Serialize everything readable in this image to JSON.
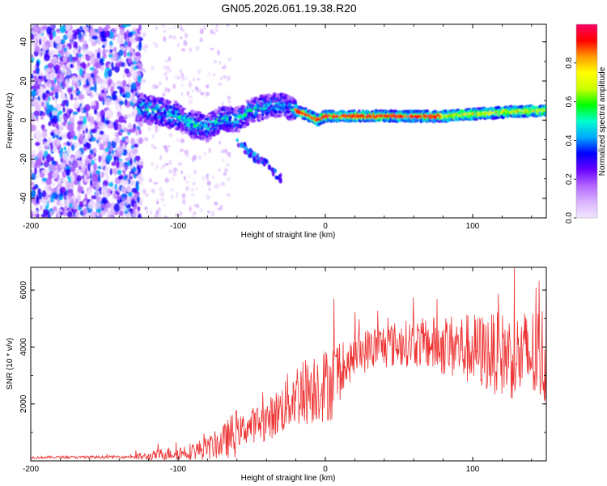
{
  "chart_data": [
    {
      "type": "heatmap",
      "title": "GN05.2026.061.19.38.R20",
      "xlabel": "Height of straight line (km)",
      "ylabel": "Frequency (Hz)",
      "xlim": [
        -200,
        150
      ],
      "ylim": [
        -50,
        49
      ],
      "xticks": [
        -200,
        -100,
        0,
        100
      ],
      "yticks": [
        -40,
        -20,
        0,
        20,
        40
      ],
      "colorbar": {
        "label": "Normalized spectral amplitude",
        "range": [
          0,
          1
        ],
        "ticks": [
          0.0,
          0.2,
          0.4,
          0.6,
          0.8
        ],
        "stops": [
          "#f2e6ff",
          "#d9b3ff",
          "#b366ff",
          "#6600ff",
          "#0000ff",
          "#00aaff",
          "#00ffcc",
          "#00ff00",
          "#ccff00",
          "#ffff00",
          "#ff9900",
          "#ff0000",
          "#ff0066"
        ]
      },
      "ridge": {
        "description_points_x": [
          -125,
          -110,
          -100,
          -90,
          -80,
          -70,
          -60,
          -50,
          -40,
          -30,
          -20,
          -10,
          -5,
          0,
          20,
          50,
          80,
          100,
          120,
          150
        ],
        "description_points_freq": [
          6,
          4,
          2,
          -2,
          -4,
          1,
          0,
          5,
          7,
          8,
          5,
          2,
          0,
          2,
          2,
          2,
          2,
          3,
          4,
          5
        ],
        "tail_x": [
          -60,
          -55,
          -50,
          -40,
          -30
        ],
        "tail_freq": [
          -10,
          -14,
          -18,
          -22,
          -30
        ]
      }
    },
    {
      "type": "line",
      "xlabel": "Height of straight line (km)",
      "ylabel": "SNR (10 * v/v)",
      "xlim": [
        -200,
        150
      ],
      "ylim": [
        0,
        6800
      ],
      "xticks": [
        -200,
        -100,
        0,
        100
      ],
      "yticks": [
        2000,
        4000,
        6000
      ],
      "color": "#ee3333",
      "series": [
        {
          "name": "SNR",
          "x": [
            -200,
            -180,
            -160,
            -140,
            -120,
            -110,
            -100,
            -90,
            -80,
            -70,
            -60,
            -50,
            -45,
            -40,
            -35,
            -30,
            -25,
            -20,
            -15,
            -10,
            -5,
            0,
            5,
            10,
            15,
            20,
            25,
            30,
            40,
            50,
            60,
            70,
            80,
            90,
            100,
            110,
            120,
            130,
            140,
            150
          ],
          "values": [
            120,
            130,
            130,
            140,
            150,
            250,
            280,
            350,
            450,
            650,
            1000,
            1250,
            1300,
            1400,
            1600,
            1800,
            2100,
            2350,
            2400,
            2550,
            2700,
            2650,
            2800,
            3050,
            3300,
            3700,
            3800,
            3950,
            4050,
            4100,
            4150,
            4100,
            4050,
            4000,
            3900,
            3800,
            3750,
            3650,
            3700,
            3700
          ]
        }
      ]
    }
  ]
}
